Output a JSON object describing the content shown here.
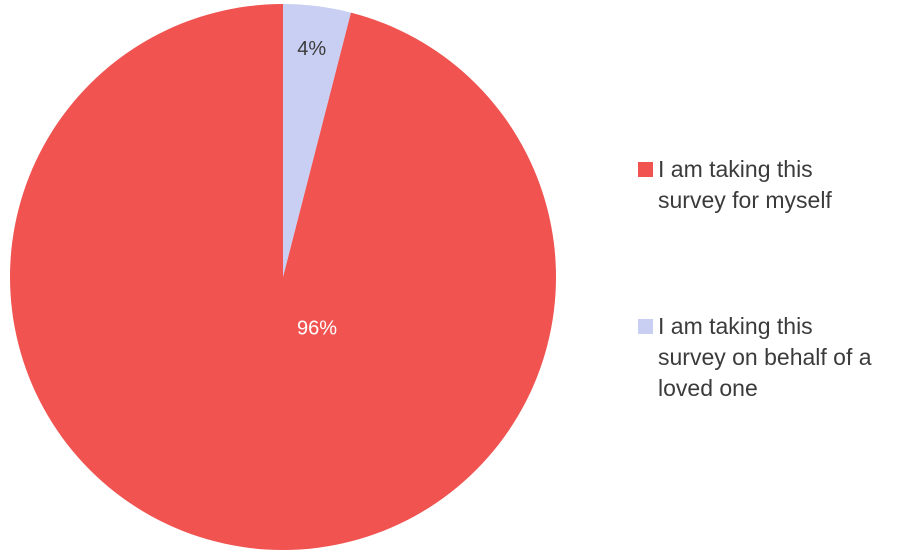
{
  "chart_data": {
    "type": "pie",
    "title": "",
    "slices": [
      {
        "label": "I am taking this survey for myself",
        "value": 96,
        "display": "96%",
        "color": "#F05350",
        "label_color": "#FFFFFF",
        "legend_lines": [
          "I am taking this",
          "survey for myself"
        ]
      },
      {
        "label": "I am taking this survey on behalf of a loved one",
        "value": 4,
        "display": "4%",
        "color": "#C9CFF2",
        "label_color": "#3B3B3B",
        "legend_lines": [
          "I am taking this",
          "survey on behalf of a",
          "loved one"
        ]
      }
    ],
    "legend_position": "right",
    "start_angle": "top",
    "direction": "clockwise"
  }
}
